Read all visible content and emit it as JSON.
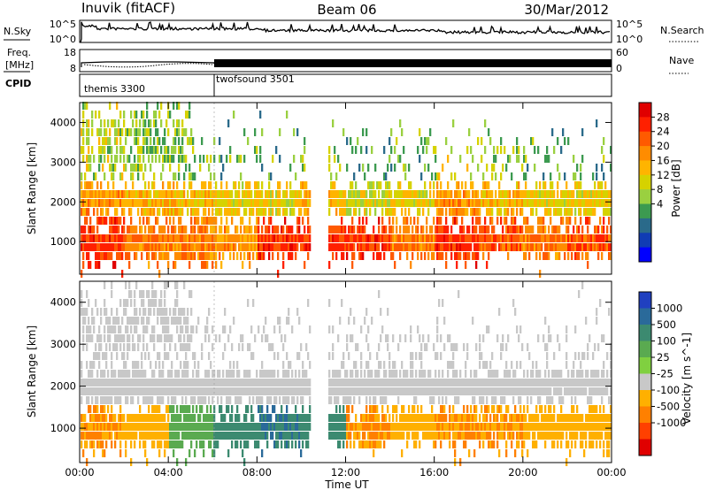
{
  "header": {
    "site": "Inuvik (fitACF)",
    "beam": "Beam 06",
    "date": "30/Mar/2012"
  },
  "noise_panel": {
    "left_label": "N.Sky",
    "right_label": "N.Search",
    "left_ticks": [
      "10^5",
      "10^0"
    ],
    "right_ticks": [
      "10^5",
      "10^0"
    ]
  },
  "freq_panel": {
    "left_label_top": "Freq.",
    "left_label_bottom": "[MHz]",
    "right_label": "Nave",
    "left_ticks": [
      "18",
      "8"
    ],
    "right_ticks": [
      "60",
      "0"
    ]
  },
  "cpid_panel": {
    "label": "CPID",
    "modes": [
      "themis 3300",
      "twofsound 3501"
    ]
  },
  "power_panel": {
    "ylabel": "Slant Range [km]",
    "yticks": [
      "4000",
      "3000",
      "2000",
      "1000"
    ],
    "colorbar_label": "Power [dB]",
    "colorbar_ticks": [
      "28",
      "24",
      "20",
      "16",
      "12",
      "8",
      "4"
    ],
    "colors": [
      "#e00000",
      "#ff2000",
      "#ff5a00",
      "#ff8c00",
      "#ffb400",
      "#d6d200",
      "#9ad040",
      "#3c9a50",
      "#2a6a8a",
      "#103cb4",
      "#0000ff"
    ]
  },
  "velocity_panel": {
    "ylabel": "Slant Range [km]",
    "yticks": [
      "4000",
      "3000",
      "2000",
      "1000"
    ],
    "colorbar_label": "Velocity [m s^-1]",
    "colorbar_ticks": [
      "1000",
      "500",
      "100",
      "25",
      "-25",
      "-100",
      "-500",
      "-1000"
    ],
    "colors": [
      "#2040c0",
      "#2a6a9a",
      "#3c8a70",
      "#5aaa50",
      "#80d040",
      "#c8c8c8",
      "#ffb000",
      "#ff8000",
      "#ff4000",
      "#e00000"
    ]
  },
  "xaxis": {
    "label": "Time UT",
    "ticks": [
      "00:00",
      "04:00",
      "08:00",
      "12:00",
      "16:00",
      "20:00",
      "00:00"
    ]
  },
  "chart_data": [
    {
      "type": "line",
      "title": "Inuvik (fitACF) Beam 06 30/Mar/2012",
      "series": [
        {
          "name": "N.Sky",
          "x": [
            "00:00",
            "00:30",
            "04:00",
            "08:00",
            "12:00",
            "16:00",
            "20:00",
            "24:00"
          ],
          "values": [
            1,
            30000,
            30000,
            10000,
            12000,
            5000,
            8000,
            3000
          ]
        },
        {
          "name": "N.Search",
          "x": [
            "00:00",
            "00:30",
            "04:00",
            "08:00",
            "12:00",
            "16:00",
            "20:00",
            "24:00"
          ],
          "values": [
            1,
            80,
            70,
            60,
            60,
            60,
            60,
            60
          ]
        }
      ],
      "ylim": [
        1,
        100000
      ],
      "yscale": "log"
    },
    {
      "type": "line",
      "series": [
        {
          "name": "Freq. [MHz]",
          "x": [
            "00:00",
            "06:00",
            "24:00"
          ],
          "values": [
            11,
            11,
            11
          ]
        },
        {
          "name": "Nave",
          "x": [
            "00:00",
            "06:00",
            "24:00"
          ],
          "values": [
            15,
            18,
            18
          ]
        }
      ],
      "ylim": [
        8,
        18
      ]
    },
    {
      "type": "heatmap",
      "title": "Power [dB]",
      "ylabel": "Slant Range [km]",
      "xlabel": "Time UT",
      "x": [
        "00:00",
        "02:00",
        "04:00",
        "06:00",
        "08:00",
        "10:00",
        "12:00",
        "14:00",
        "16:00",
        "18:00",
        "20:00",
        "22:00"
      ],
      "y": [
        1000,
        2000
      ],
      "values": [
        [
          26,
          22,
          22,
          20,
          26,
          26,
          26,
          22,
          26,
          24,
          22,
          24
        ],
        [
          20,
          18,
          18,
          16,
          16,
          18,
          14,
          16,
          20,
          18,
          16,
          16
        ]
      ],
      "ylim": [
        180,
        4500
      ],
      "zlim": [
        0,
        30
      ]
    },
    {
      "type": "heatmap",
      "title": "Velocity [m s^-1]",
      "ylabel": "Slant Range [km]",
      "xlabel": "Time UT",
      "x": [
        "00:00",
        "02:00",
        "04:00",
        "06:00",
        "08:00",
        "10:00",
        "12:00",
        "14:00",
        "16:00",
        "18:00",
        "20:00",
        "22:00"
      ],
      "y": [
        1000,
        2000
      ],
      "values": [
        [
          -300,
          -200,
          50,
          200,
          300,
          200,
          -300,
          -200,
          -300,
          -300,
          -200,
          -200
        ],
        [
          -20,
          0,
          0,
          0,
          0,
          0,
          0,
          -50,
          0,
          0,
          0,
          0
        ]
      ],
      "ylim": [
        180,
        4500
      ],
      "zlim": [
        -1000,
        1000
      ]
    }
  ]
}
